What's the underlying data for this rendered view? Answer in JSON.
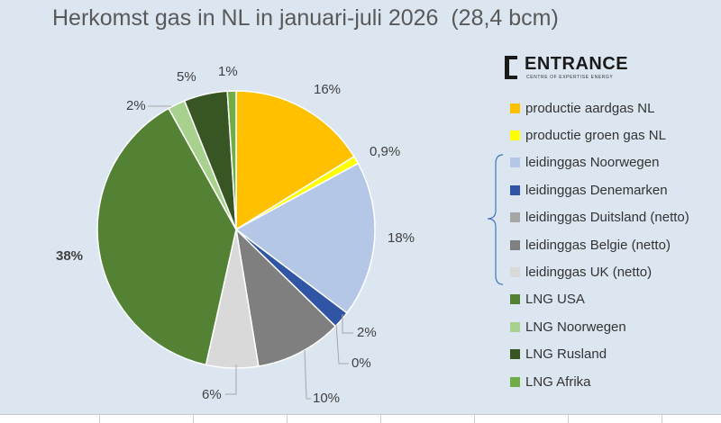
{
  "title": "Herkomst gas in NL in januari-juli 2026  (28,4 bcm)",
  "logo": {
    "name": "ENTRANCE",
    "tagline": "CENTRE OF EXPERTISE ENERGY"
  },
  "chart_data": {
    "type": "pie",
    "title": "Herkomst gas in NL in januari-juli 2026  (28,4 bcm)",
    "start_angle_deg": 0,
    "direction": "clockwise",
    "legend_position": "right",
    "slices": [
      {
        "name": "productie aardgas NL",
        "value": 16,
        "label": "16%",
        "color": "#ffc000"
      },
      {
        "name": "productie groen gas NL",
        "value": 0.9,
        "label": "0,9%",
        "color": "#ffff00"
      },
      {
        "name": "leidinggas Noorwegen",
        "value": 18,
        "label": "18%",
        "color": "#b4c7e7"
      },
      {
        "name": "leidinggas Denemarken",
        "value": 2,
        "label": "2%",
        "color": "#2f55a4"
      },
      {
        "name": "leidinggas Duitsland  (netto)",
        "value": 0,
        "label": "0%",
        "color": "#a6a6a6"
      },
      {
        "name": "leidinggas Belgie (netto)",
        "value": 10,
        "label": "10%",
        "color": "#7f7f7f"
      },
      {
        "name": "leidinggas UK  (netto)",
        "value": 6,
        "label": "6%",
        "color": "#d9d9d9"
      },
      {
        "name": "LNG USA",
        "value": 38,
        "label": "38%",
        "color": "#548235"
      },
      {
        "name": "LNG Noorwegen",
        "value": 2,
        "label": "2%",
        "color": "#a9d18e"
      },
      {
        "name": "LNG Rusland",
        "value": 5,
        "label": "5%",
        "color": "#375623"
      },
      {
        "name": "LNG Afrika",
        "value": 1,
        "label": "1%",
        "color": "#70ad47"
      }
    ]
  }
}
